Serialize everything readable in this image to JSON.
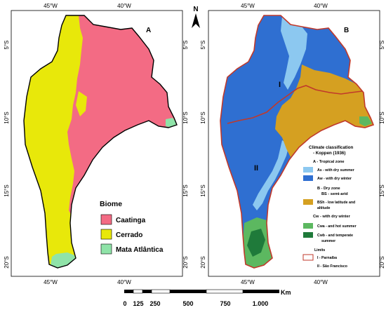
{
  "map_a": {
    "panel_letter": "A",
    "lon_ticks_top": [
      "45°W",
      "40°W"
    ],
    "lon_ticks_bottom": [
      "45°W",
      "40°W"
    ],
    "lat_ticks_left": [
      "5°S",
      "10°S",
      "15°S",
      "20°S"
    ],
    "lat_ticks_right": [
      "5°S",
      "10°S",
      "15°S",
      "20°S"
    ],
    "legend": {
      "title": "Biome",
      "items": [
        {
          "label": "Caatinga",
          "color": "#f36b84"
        },
        {
          "label": "Cerrado",
          "color": "#e8e80a"
        },
        {
          "label": "Mata Atlântica",
          "color": "#8fe3a8"
        }
      ]
    }
  },
  "map_b": {
    "panel_letter": "B",
    "lon_ticks_top": [
      "45°W",
      "40°W"
    ],
    "lon_ticks_bottom": [
      "45°W",
      "40°W"
    ],
    "lat_ticks_left": [
      "5°S",
      "10°S",
      "15°S",
      "20°S"
    ],
    "lat_ticks_right": [
      "5°S",
      "10°S",
      "15°S",
      "20°S"
    ],
    "region_labels": [
      "I",
      "II"
    ],
    "legend": {
      "title_line1": "Climate classification",
      "title_line2": "- Koppen (1936)",
      "groups": [
        {
          "heading": "A - Tropical zone",
          "items": [
            {
              "label": "As - with dry summer",
              "color": "#8cc8f0"
            },
            {
              "label": "Aw - with dry winter",
              "color": "#2f6fd1"
            }
          ]
        },
        {
          "heading": "B - Dry zone",
          "heading2": "BS - semi-arid",
          "items": [
            {
              "label": "BSh - low latitude and",
              "label2": "altitude",
              "color": "#d5a021"
            }
          ]
        },
        {
          "heading": "Cw - with dry winter",
          "items": [
            {
              "label": "Cwa - and hot summer",
              "color": "#5cb860"
            },
            {
              "label": "Cwb - and temperate",
              "label2": "summer",
              "color": "#1f7a3a"
            }
          ]
        }
      ],
      "limits_title": "Limits",
      "limits": [
        {
          "label": "I   - Parnaíba",
          "color": "#c0392b"
        },
        {
          "label": "II  - São Francisco",
          "color": "#c0392b"
        }
      ]
    }
  },
  "north_arrow": {
    "label": "N"
  },
  "scale_bar": {
    "unit": "Km",
    "labels": [
      "0",
      "125",
      "250",
      "500",
      "750",
      "1.000"
    ]
  },
  "colors": {
    "caatinga": "#f36b84",
    "cerrado": "#e8e80a",
    "mata": "#8fe3a8",
    "as": "#8cc8f0",
    "aw": "#2f6fd1",
    "bsh": "#d5a021",
    "cwa": "#5cb860",
    "cwb": "#1f7a3a",
    "limit": "#c0392b"
  }
}
